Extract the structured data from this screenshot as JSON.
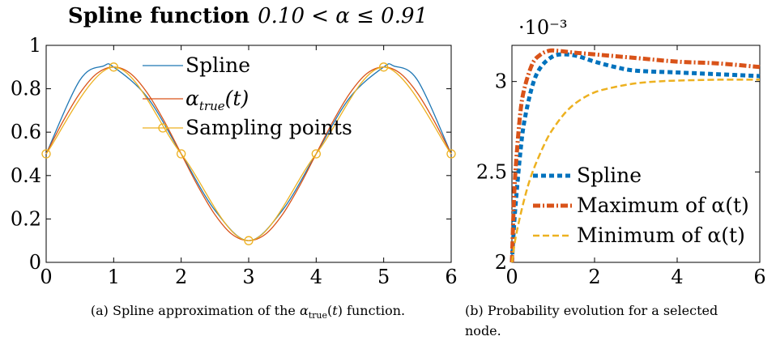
{
  "chart_data": [
    {
      "id": "a",
      "type": "line",
      "title_bold": "Spline function",
      "title_math": "0.10 < α ≤ 0.91",
      "xlabel": "",
      "ylabel": "",
      "xlim": [
        0,
        6
      ],
      "ylim": [
        0,
        1
      ],
      "xticks": [
        "0",
        "1",
        "2",
        "3",
        "4",
        "5",
        "6"
      ],
      "yticks": [
        "0",
        "0.2",
        "0.4",
        "0.6",
        "0.8",
        "1"
      ],
      "grid": false,
      "legend_position": "top-center",
      "series": [
        {
          "name": "Spline",
          "color": "#1f77b4",
          "style": "solid",
          "x": [
            0,
            0.5,
            0.85,
            1,
            1.5,
            2,
            2.5,
            3,
            3.5,
            4,
            4.5,
            5,
            5.15,
            5.5,
            6
          ],
          "y": [
            0.5,
            0.84,
            0.905,
            0.9,
            0.76,
            0.5,
            0.24,
            0.1,
            0.24,
            0.5,
            0.76,
            0.9,
            0.905,
            0.84,
            0.5
          ]
        },
        {
          "name": "α_true(t)",
          "color": "#d95319",
          "style": "solid",
          "x": [
            0,
            0.25,
            0.5,
            0.75,
            1,
            1.25,
            1.5,
            1.75,
            2,
            2.25,
            2.5,
            2.75,
            3,
            3.25,
            3.5,
            3.75,
            4,
            4.25,
            4.5,
            4.75,
            5,
            5.25,
            5.5,
            5.75,
            6
          ],
          "y": [
            0.5,
            0.65,
            0.78,
            0.87,
            0.9,
            0.87,
            0.78,
            0.65,
            0.5,
            0.35,
            0.22,
            0.13,
            0.1,
            0.13,
            0.22,
            0.35,
            0.5,
            0.65,
            0.78,
            0.87,
            0.9,
            0.87,
            0.78,
            0.65,
            0.5
          ]
        },
        {
          "name": "Sampling points",
          "color": "#edb120",
          "style": "markers",
          "x": [
            0,
            1,
            2,
            3,
            4,
            5,
            6
          ],
          "y": [
            0.5,
            0.9,
            0.5,
            0.1,
            0.5,
            0.9,
            0.5
          ]
        }
      ],
      "caption": "(a) Spline approximation of the αtrue(t) function."
    },
    {
      "id": "b",
      "type": "line",
      "title": "",
      "xlabel": "",
      "ylabel": "",
      "y_multiplier": "·10⁻³",
      "xlim": [
        0,
        6
      ],
      "ylim": [
        2.0,
        3.2
      ],
      "xticks": [
        "0",
        "2",
        "4",
        "6"
      ],
      "yticks": [
        "2",
        "2.5",
        "3"
      ],
      "grid": false,
      "legend_position": "bottom-right",
      "series": [
        {
          "name": "Spline",
          "color": "#0072bd",
          "style": "dotted",
          "x": [
            0,
            0.05,
            0.1,
            0.2,
            0.3,
            0.5,
            0.7,
            1.0,
            1.3,
            1.6,
            2.0,
            2.5,
            3,
            4,
            5,
            6
          ],
          "y": [
            2.0,
            2.2,
            2.35,
            2.6,
            2.78,
            2.98,
            3.08,
            3.14,
            3.15,
            3.14,
            3.11,
            3.08,
            3.06,
            3.05,
            3.04,
            3.03
          ]
        },
        {
          "name": "Maximum of α(t)",
          "color": "#d95319",
          "style": "dashdot",
          "x": [
            0,
            0.05,
            0.1,
            0.2,
            0.3,
            0.5,
            0.7,
            0.9,
            1.1,
            1.5,
            2,
            3,
            4,
            5,
            6
          ],
          "y": [
            2.0,
            2.35,
            2.55,
            2.82,
            2.96,
            3.1,
            3.15,
            3.17,
            3.17,
            3.16,
            3.15,
            3.13,
            3.11,
            3.1,
            3.08
          ]
        },
        {
          "name": "Minimum of α(t)",
          "color": "#edb120",
          "style": "dashed",
          "x": [
            0,
            0.1,
            0.3,
            0.5,
            0.8,
            1.0,
            1.3,
            1.6,
            2.0,
            2.5,
            3.0,
            3.5,
            4,
            5,
            6
          ],
          "y": [
            2.0,
            2.15,
            2.35,
            2.5,
            2.66,
            2.74,
            2.83,
            2.89,
            2.94,
            2.97,
            2.99,
            3.0,
            3.005,
            3.01,
            3.01
          ]
        }
      ],
      "caption_line1": "(b) Probability evolution for a selected",
      "caption_line2": "node."
    }
  ]
}
